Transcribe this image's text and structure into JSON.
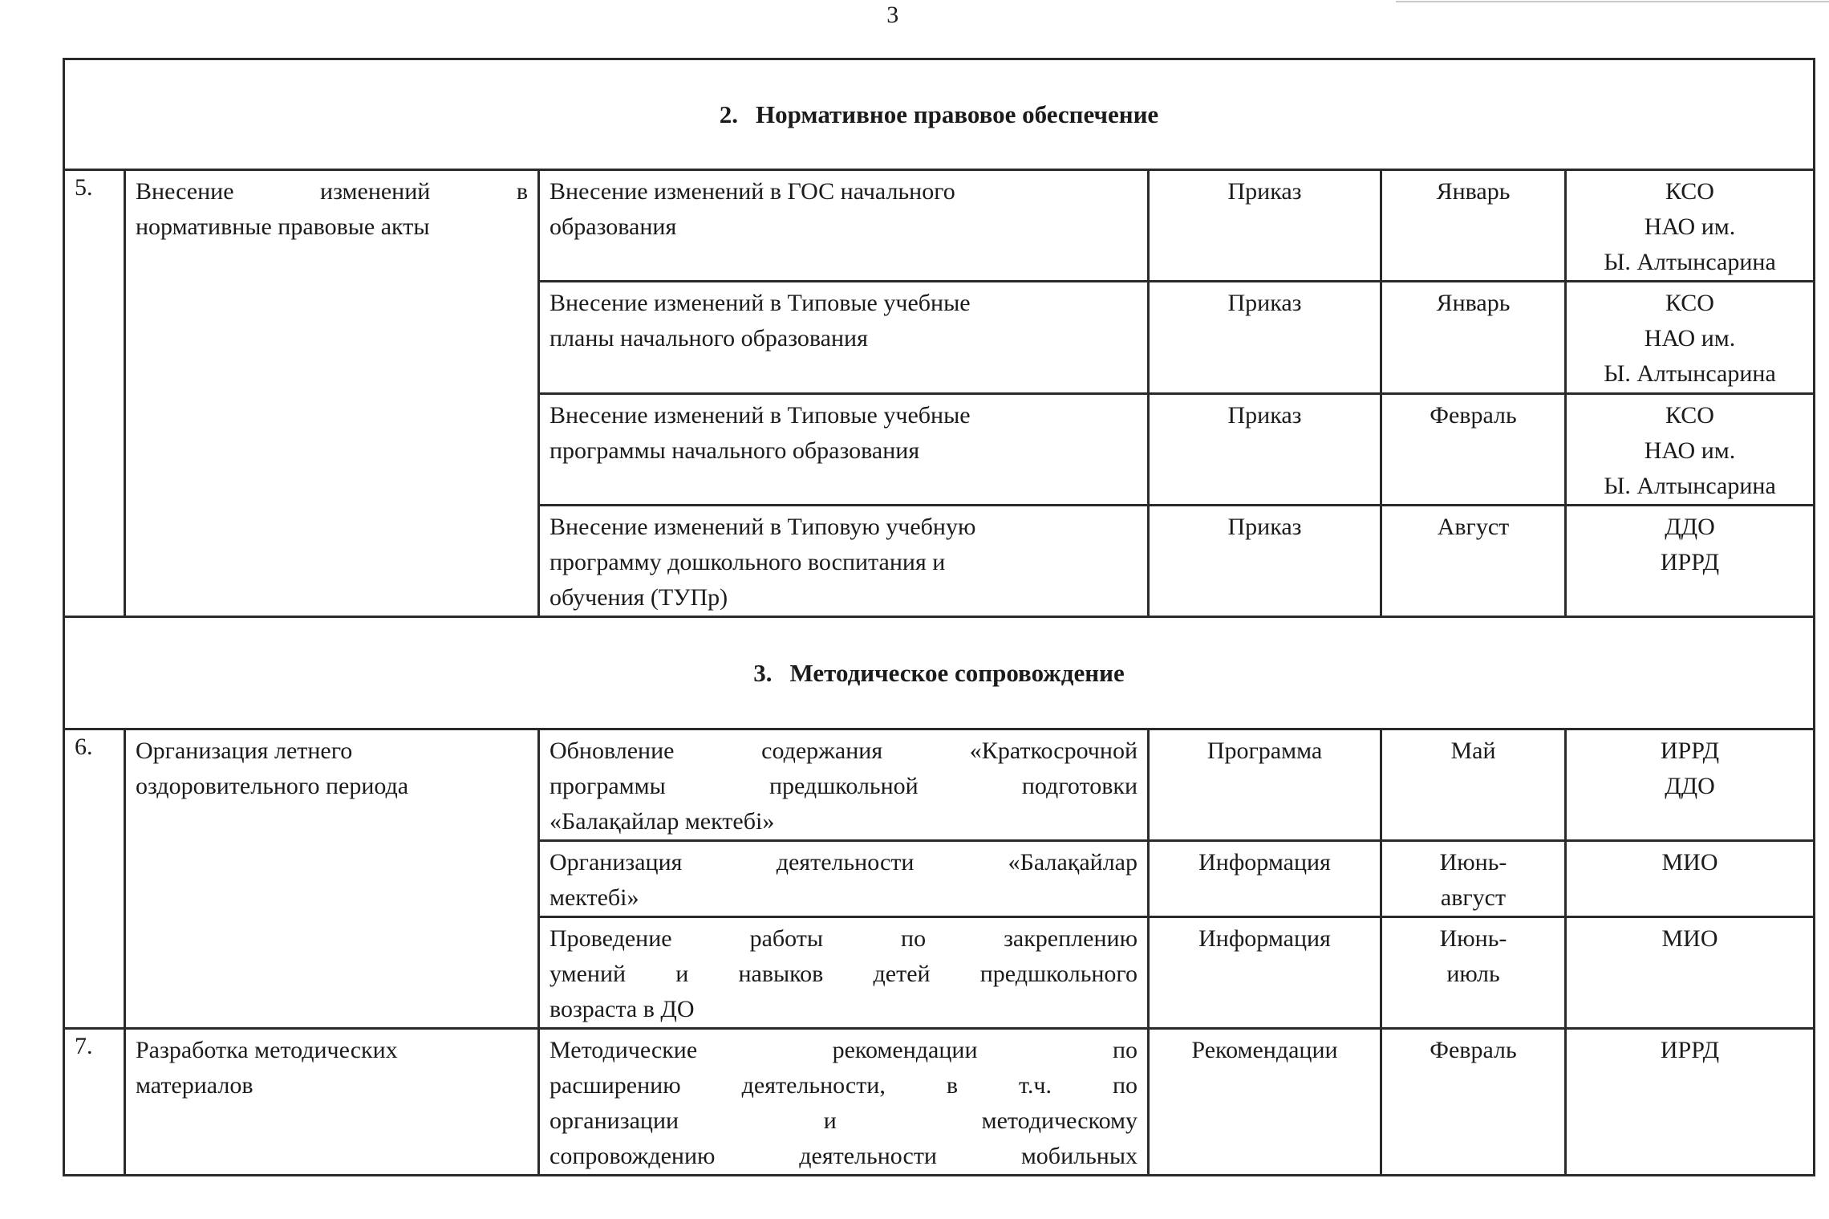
{
  "page": {
    "number": "3"
  },
  "sections": [
    {
      "number": "2.",
      "title": "Нормативное правовое обеспечение",
      "groups": [
        {
          "num": "5.",
          "task_lines": [
            "Внесение изменений в",
            "нормативные правовые акты"
          ],
          "activities": [
            {
              "desc_lines": [
                "Внесение изменений в ГОС начального",
                "образования"
              ],
              "form": "Приказ",
              "timing_lines": [
                "Январь"
              ],
              "resp_lines": [
                "КСО",
                "НАО им.",
                "Ы. Алтынсарина"
              ]
            },
            {
              "desc_lines": [
                "Внесение изменений в Типовые учебные",
                "планы начального образования"
              ],
              "form": "Приказ",
              "timing_lines": [
                "Январь"
              ],
              "resp_lines": [
                "КСО",
                "НАО им.",
                "Ы. Алтынсарина"
              ]
            },
            {
              "desc_lines": [
                "Внесение изменений в Типовые учебные",
                "программы начального образования"
              ],
              "form": "Приказ",
              "timing_lines": [
                "Февраль"
              ],
              "resp_lines": [
                "КСО",
                "НАО им.",
                "Ы. Алтынсарина"
              ]
            },
            {
              "desc_lines": [
                "Внесение изменений в Типовую учебную",
                "программу дошкольного воспитания и",
                "обучения (ТУПр)"
              ],
              "form": "Приказ",
              "timing_lines": [
                "Август"
              ],
              "resp_lines": [
                "ДДО",
                "ИРРД"
              ]
            }
          ]
        }
      ]
    },
    {
      "number": "3.",
      "title": "Методическое сопровождение",
      "groups": [
        {
          "num": "6.",
          "task_lines": [
            "Организация летнего",
            "оздоровительного периода"
          ],
          "activities": [
            {
              "desc_lines": [
                "Обновление содержания «Краткосрочной",
                "программы предшкольной подготовки",
                "«Балақайлар мектебі»"
              ],
              "form": "Программа",
              "timing_lines": [
                "Май"
              ],
              "resp_lines": [
                "ИРРД",
                "ДДО"
              ]
            },
            {
              "desc_lines": [
                "Организация деятельности «Балақайлар",
                "мектебі»"
              ],
              "form": "Информация",
              "timing_lines": [
                "Июнь-",
                "август"
              ],
              "resp_lines": [
                "МИО"
              ]
            },
            {
              "desc_lines": [
                "Проведение работы по закреплению",
                "умений и навыков детей предшкольного",
                "возраста в ДО"
              ],
              "form": "Информация",
              "timing_lines": [
                "Июнь-",
                "июль"
              ],
              "resp_lines": [
                "МИО"
              ]
            }
          ]
        },
        {
          "num": "7.",
          "task_lines": [
            "Разработка методических",
            "материалов"
          ],
          "activities": [
            {
              "desc_lines": [
                "Методические рекомендации по",
                "расширению деятельности, в т.ч. по",
                "организации и методическому",
                "сопровождению деятельности мобильных"
              ],
              "form": "Рекомендации",
              "timing_lines": [
                "Февраль"
              ],
              "resp_lines": [
                "ИРРД"
              ]
            }
          ]
        }
      ]
    }
  ]
}
